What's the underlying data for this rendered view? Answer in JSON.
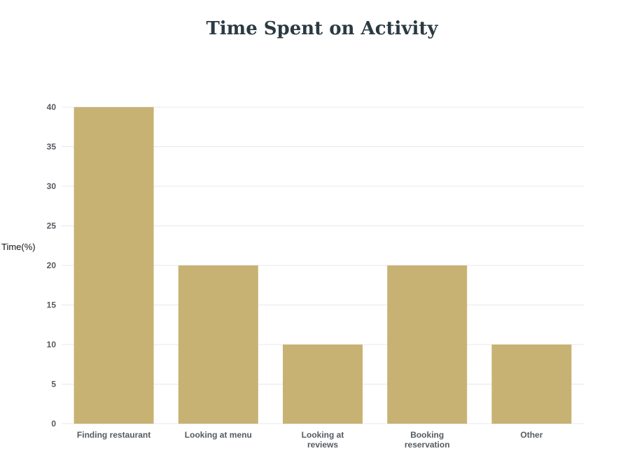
{
  "chart_data": {
    "type": "bar",
    "title": "Time Spent on Activity",
    "ylabel": "Time(%)",
    "xlabel": "",
    "categories": [
      [
        "Finding restaurant"
      ],
      [
        "Looking at menu"
      ],
      [
        "Looking at",
        "reviews"
      ],
      [
        "Booking",
        "reservation"
      ],
      [
        "Other"
      ]
    ],
    "values": [
      40,
      20,
      10,
      20,
      10
    ],
    "ylim": [
      0,
      40
    ],
    "yticks": [
      0,
      5,
      10,
      15,
      20,
      25,
      30,
      35,
      40
    ],
    "grid": true,
    "bar_color": "#c8b273",
    "grid_color": "#e4e8ec"
  }
}
